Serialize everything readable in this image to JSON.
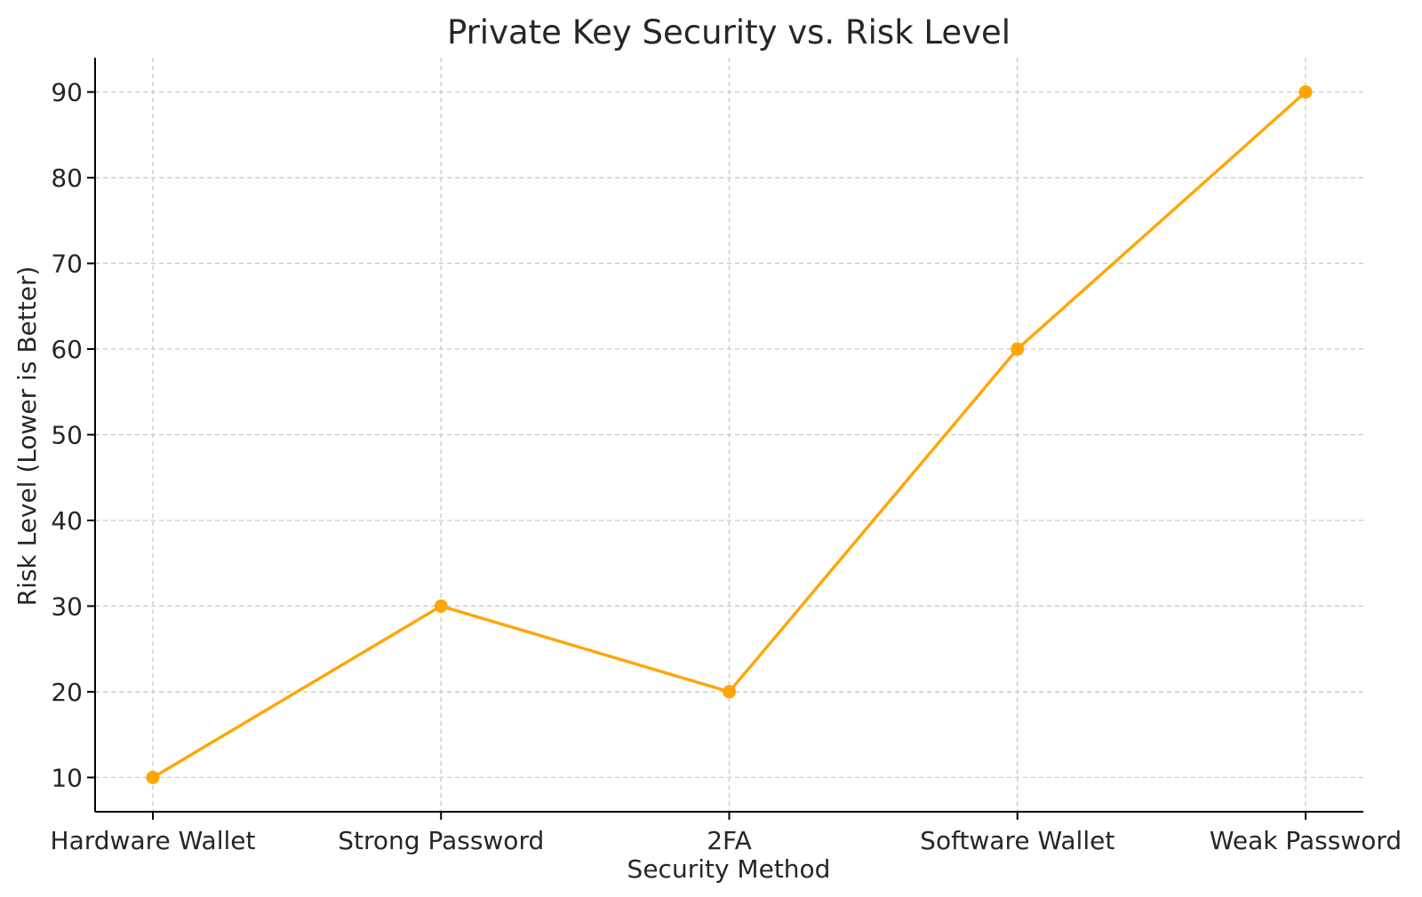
{
  "chart_data": {
    "type": "line",
    "title": "Private Key Security vs. Risk Level",
    "xlabel": "Security Method",
    "ylabel": "Risk Level (Lower is Better)",
    "categories": [
      "Hardware Wallet",
      "Strong Password",
      "2FA",
      "Software Wallet",
      "Weak Password"
    ],
    "series": [
      {
        "values": [
          10,
          30,
          20,
          60,
          90
        ],
        "color": "#ffa500",
        "marker": "circle"
      }
    ],
    "yticks": [
      10,
      20,
      30,
      40,
      50,
      60,
      70,
      80,
      90
    ],
    "ylim": [
      6,
      94
    ],
    "grid": true,
    "legend": "none"
  }
}
